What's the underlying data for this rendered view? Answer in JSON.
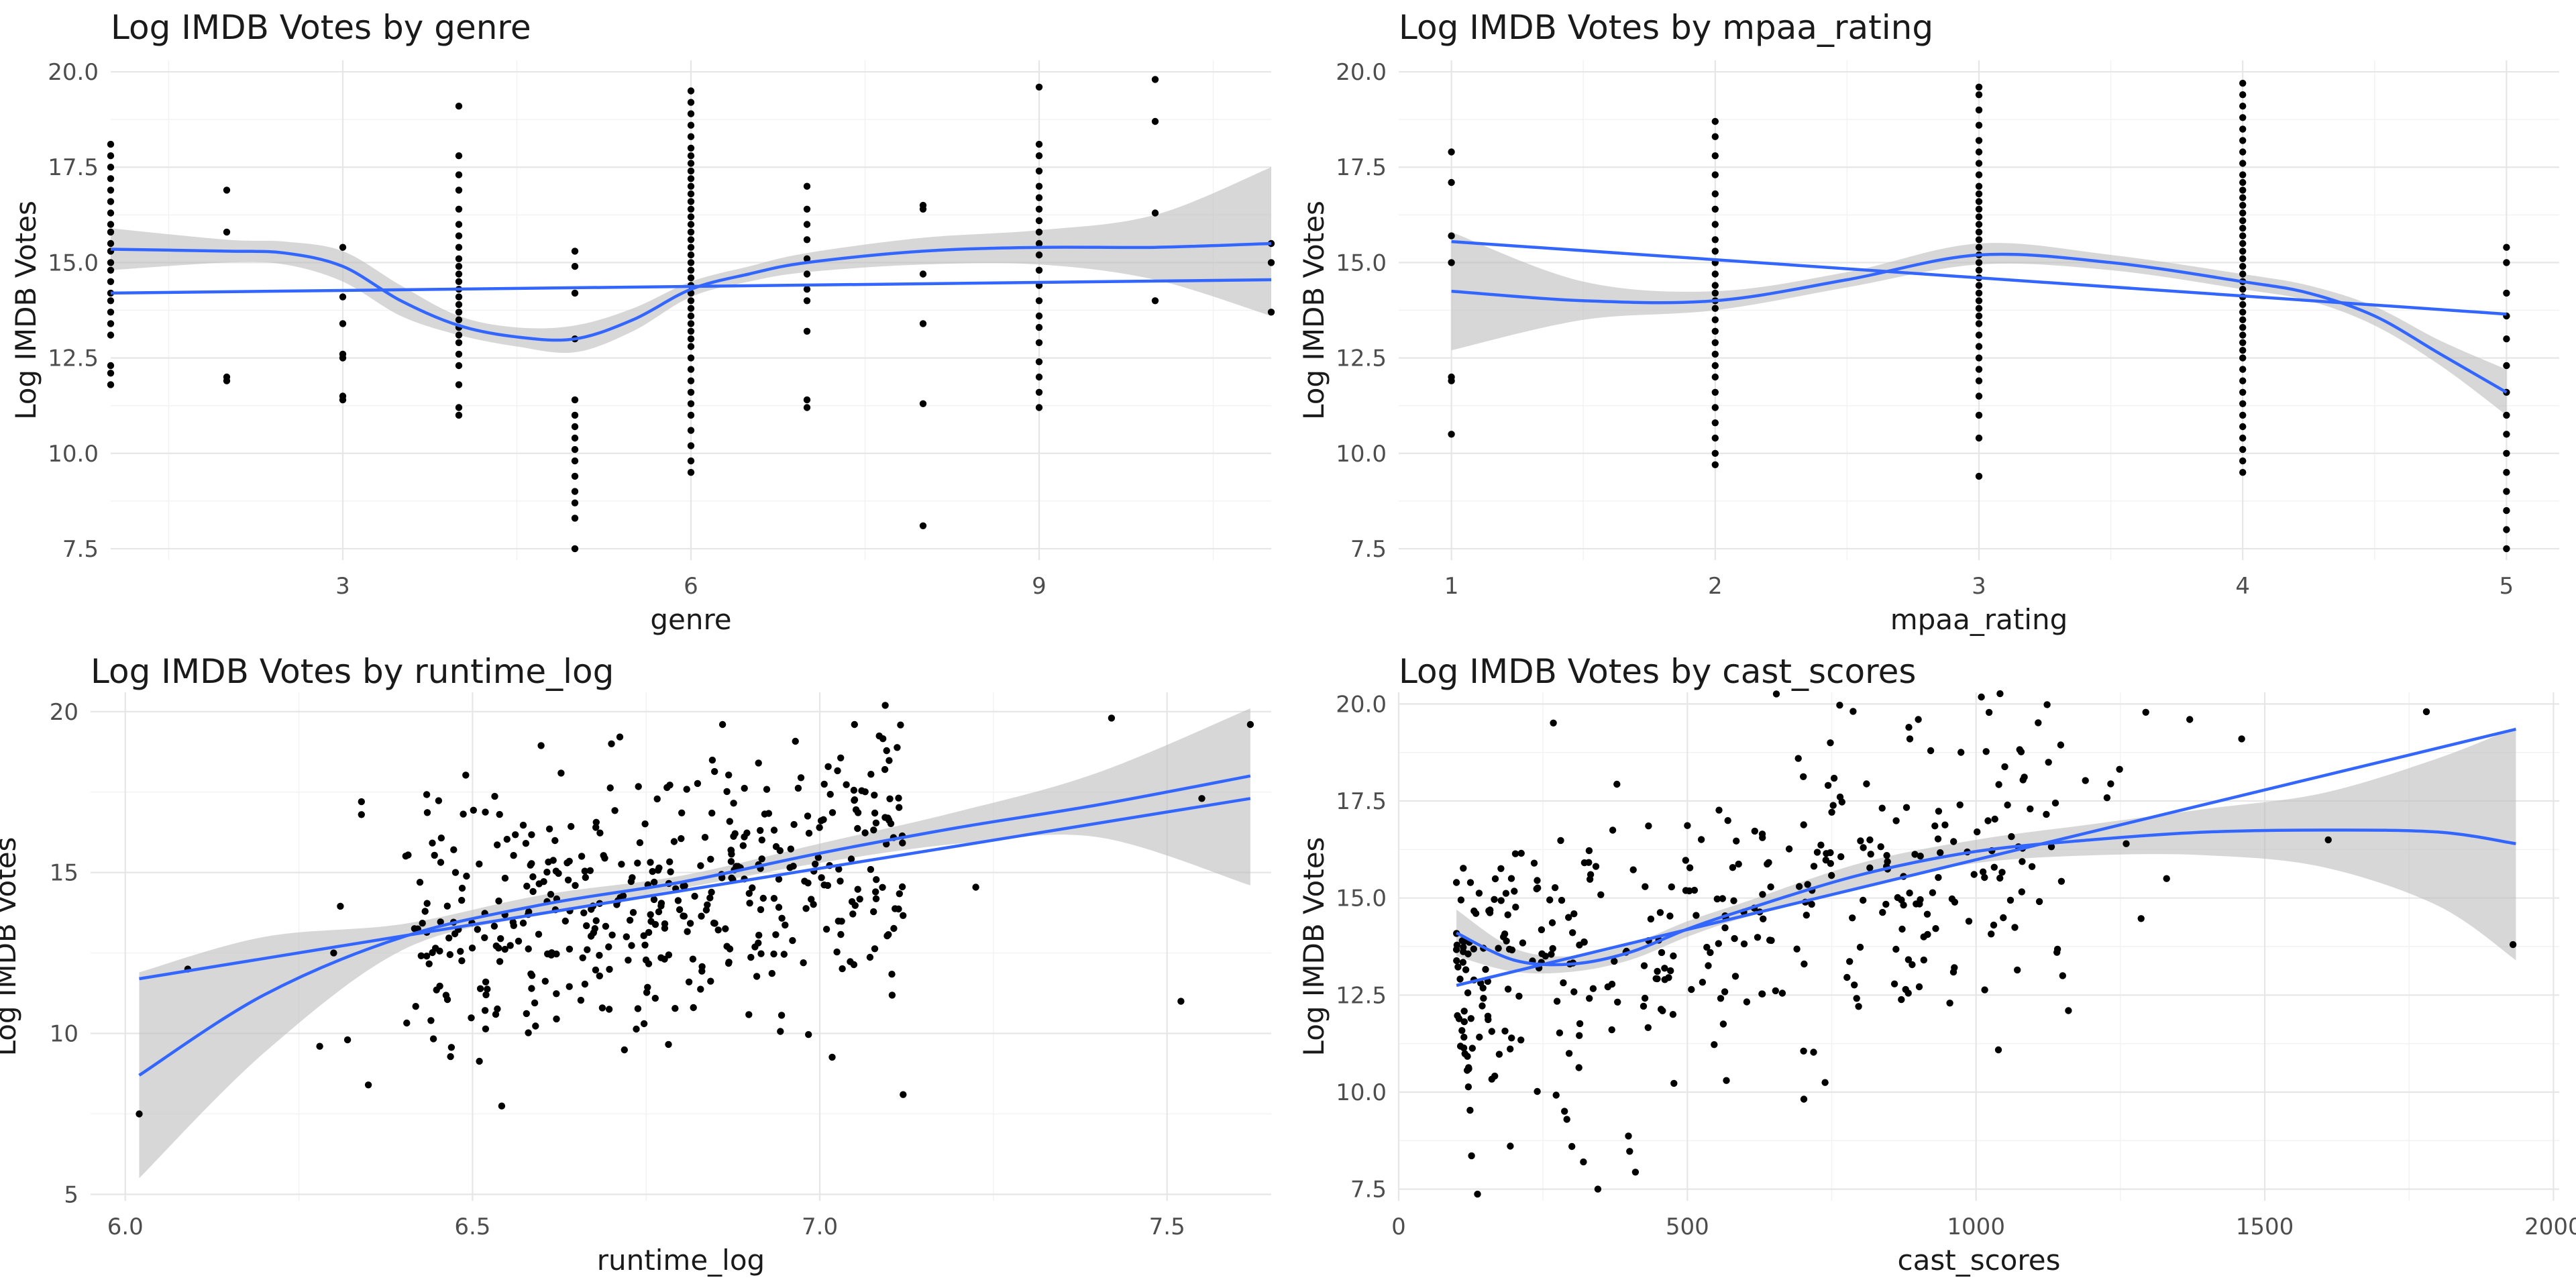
{
  "chart_data": [
    {
      "type": "scatter",
      "title": "Log IMDB Votes by genre",
      "xlabel": "genre",
      "ylabel": "Log IMDB Votes",
      "xlim": [
        1,
        11
      ],
      "ylim": [
        7.2,
        20.3
      ],
      "xticks": [
        3,
        6,
        9
      ],
      "yticks": [
        7.5,
        10.0,
        12.5,
        15.0,
        17.5,
        20.0
      ],
      "xtick_labels": [
        "3",
        "6",
        "9"
      ],
      "ytick_labels": [
        "7.5",
        "10.0",
        "12.5",
        "15.0",
        "17.5",
        "20.0"
      ],
      "grid": true,
      "points": {
        "columns": [
          {
            "x": 1,
            "y": [
              11.8,
              12.1,
              12.3,
              13.1,
              13.4,
              13.7,
              14.0,
              14.2,
              14.5,
              14.8,
              15.0,
              15.3,
              15.5,
              15.8,
              16.0,
              16.3,
              16.6,
              16.9,
              17.2,
              17.5,
              17.8,
              18.1
            ]
          },
          {
            "x": 2,
            "y": [
              11.9,
              12.0,
              15.8,
              16.9
            ]
          },
          {
            "x": 3,
            "y": [
              11.4,
              11.5,
              12.5,
              12.6,
              13.4,
              14.1,
              15.4
            ]
          },
          {
            "x": 4,
            "y": [
              11.0,
              11.2,
              11.8,
              12.3,
              12.6,
              12.9,
              13.1,
              13.3,
              13.5,
              13.7,
              13.9,
              14.1,
              14.3,
              14.5,
              14.7,
              14.9,
              15.1,
              15.4,
              15.7,
              16.0,
              16.4,
              16.9,
              17.3,
              17.8,
              19.1
            ]
          },
          {
            "x": 5,
            "y": [
              7.5,
              8.3,
              8.7,
              9.0,
              9.4,
              9.8,
              10.1,
              10.4,
              10.7,
              11.0,
              11.4,
              13.0,
              14.2,
              14.9,
              15.3
            ]
          },
          {
            "x": 6,
            "y": [
              9.5,
              9.8,
              10.2,
              10.6,
              11.0,
              11.3,
              11.6,
              11.9,
              12.2,
              12.5,
              12.8,
              13.0,
              13.2,
              13.4,
              13.6,
              13.8,
              14.0,
              14.2,
              14.4,
              14.6,
              14.8,
              15.0,
              15.2,
              15.4,
              15.6,
              15.8,
              16.0,
              16.2,
              16.4,
              16.6,
              16.8,
              17.0,
              17.2,
              17.4,
              17.6,
              17.8,
              18.0,
              18.3,
              18.6,
              18.9,
              19.2,
              19.5
            ]
          },
          {
            "x": 7,
            "y": [
              11.2,
              11.4,
              13.2,
              14.0,
              14.3,
              14.7,
              15.1,
              15.6,
              16.0,
              16.4,
              17.0
            ]
          },
          {
            "x": 8,
            "y": [
              8.1,
              11.3,
              13.4,
              14.7,
              16.4,
              16.5
            ]
          },
          {
            "x": 9,
            "y": [
              11.2,
              11.6,
              12.0,
              12.4,
              12.9,
              13.3,
              13.6,
              14.0,
              14.4,
              14.8,
              15.2,
              15.5,
              15.8,
              16.1,
              16.4,
              16.7,
              17.0,
              17.4,
              17.8,
              18.1,
              19.6
            ]
          },
          {
            "x": 10,
            "y": [
              14.0,
              16.3,
              18.7,
              19.8
            ]
          },
          {
            "x": 11,
            "y": [
              13.7,
              15.0,
              15.5
            ]
          }
        ]
      },
      "lm_fit": {
        "x": [
          1,
          11
        ],
        "y": [
          14.2,
          14.55
        ]
      },
      "loess_fit": {
        "x": [
          1,
          2,
          2.5,
          3,
          3.5,
          4,
          4.5,
          5,
          5.5,
          6,
          6.5,
          7,
          8,
          9,
          10,
          11
        ],
        "y": [
          15.35,
          15.3,
          15.25,
          14.9,
          14.0,
          13.35,
          13.05,
          13.0,
          13.5,
          14.3,
          14.7,
          15.0,
          15.3,
          15.4,
          15.4,
          15.5
        ],
        "ci_low": [
          14.8,
          15.0,
          14.95,
          14.5,
          13.6,
          13.1,
          12.8,
          12.65,
          13.2,
          14.1,
          14.5,
          14.75,
          14.95,
          14.95,
          14.55,
          13.6
        ],
        "ci_high": [
          15.9,
          15.6,
          15.55,
          15.3,
          14.4,
          13.6,
          13.3,
          13.35,
          13.8,
          14.5,
          14.9,
          15.25,
          15.65,
          15.85,
          16.25,
          17.5
        ]
      }
    },
    {
      "type": "scatter",
      "title": "Log IMDB Votes by mpaa_rating",
      "xlabel": "mpaa_rating",
      "ylabel": "Log IMDB Votes",
      "xlim": [
        0.8,
        5.2
      ],
      "ylim": [
        7.2,
        20.3
      ],
      "xticks": [
        1,
        2,
        3,
        4,
        5
      ],
      "yticks": [
        7.5,
        10.0,
        12.5,
        15.0,
        17.5,
        20.0
      ],
      "xtick_labels": [
        "1",
        "2",
        "3",
        "4",
        "5"
      ],
      "ytick_labels": [
        "7.5",
        "10.0",
        "12.5",
        "15.0",
        "17.5",
        "20.0"
      ],
      "grid": true,
      "points": {
        "columns": [
          {
            "x": 1,
            "y": [
              10.5,
              11.9,
              12.0,
              15.0,
              15.7,
              17.1,
              17.9
            ]
          },
          {
            "x": 2,
            "y": [
              9.7,
              10.0,
              10.4,
              10.8,
              11.2,
              11.6,
              12.0,
              12.3,
              12.6,
              12.9,
              13.2,
              13.5,
              13.8,
              14.0,
              14.2,
              14.4,
              14.7,
              15.0,
              15.3,
              15.6,
              16.0,
              16.4,
              16.8,
              17.3,
              17.8,
              18.3,
              18.7
            ]
          },
          {
            "x": 3,
            "y": [
              9.4,
              10.4,
              11.0,
              11.5,
              11.9,
              12.2,
              12.5,
              12.8,
              13.1,
              13.4,
              13.6,
              13.8,
              14.0,
              14.2,
              14.4,
              14.6,
              14.8,
              15.0,
              15.2,
              15.4,
              15.6,
              15.8,
              16.0,
              16.2,
              16.4,
              16.6,
              16.8,
              17.0,
              17.3,
              17.6,
              17.9,
              18.2,
              18.6,
              19.0,
              19.4,
              19.6
            ]
          },
          {
            "x": 4,
            "y": [
              9.5,
              9.8,
              10.1,
              10.4,
              10.7,
              11.0,
              11.3,
              11.6,
              11.9,
              12.2,
              12.5,
              12.7,
              12.9,
              13.1,
              13.3,
              13.5,
              13.7,
              13.9,
              14.1,
              14.3,
              14.5,
              14.7,
              14.9,
              15.1,
              15.3,
              15.5,
              15.7,
              15.9,
              16.1,
              16.3,
              16.5,
              16.7,
              16.9,
              17.1,
              17.3,
              17.6,
              17.9,
              18.2,
              18.5,
              18.8,
              19.1,
              19.4,
              19.7
            ]
          },
          {
            "x": 5,
            "y": [
              7.5,
              8.0,
              8.5,
              9.0,
              9.5,
              10.0,
              10.5,
              11.0,
              11.6,
              12.3,
              13.0,
              13.6,
              14.2,
              15.0,
              15.4
            ]
          }
        ]
      },
      "lm_fit": {
        "x": [
          1,
          5
        ],
        "y": [
          15.55,
          13.65
        ]
      },
      "loess_fit": {
        "x": [
          1,
          1.5,
          2,
          2.5,
          3,
          3.5,
          4,
          4.25,
          4.5,
          4.75,
          5
        ],
        "y": [
          14.25,
          14.0,
          14.0,
          14.55,
          15.2,
          15.0,
          14.5,
          14.2,
          13.6,
          12.6,
          11.6
        ],
        "ci_low": [
          12.7,
          13.5,
          13.75,
          14.35,
          14.95,
          14.8,
          14.3,
          14.0,
          13.35,
          12.3,
          11.0
        ],
        "ci_high": [
          15.8,
          14.5,
          14.25,
          14.75,
          15.5,
          15.2,
          14.7,
          14.4,
          13.85,
          12.95,
          12.2
        ]
      }
    },
    {
      "type": "scatter",
      "title": "Log IMDB Votes by runtime_log",
      "xlabel": "runtime_log",
      "ylabel": "Log IMDB Votes",
      "xlim": [
        5.95,
        7.65
      ],
      "ylim": [
        4.8,
        20.6
      ],
      "xticks": [
        6.0,
        6.5,
        7.0,
        7.5
      ],
      "yticks": [
        5,
        10,
        15,
        20
      ],
      "xtick_labels": [
        "6.0",
        "6.5",
        "7.0",
        "7.5"
      ],
      "ytick_labels": [
        "5",
        "10",
        "15",
        "20"
      ],
      "grid": true,
      "scatter_seed": 11,
      "scatter_count": 430,
      "points_extra": [
        [
          6.02,
          7.5
        ],
        [
          6.09,
          12.0
        ],
        [
          6.3,
          12.5
        ],
        [
          6.28,
          9.6
        ],
        [
          6.32,
          9.8
        ],
        [
          6.35,
          8.4
        ],
        [
          6.34,
          17.2
        ],
        [
          6.34,
          16.8
        ],
        [
          7.12,
          8.1
        ],
        [
          7.42,
          19.8
        ],
        [
          7.55,
          17.3
        ],
        [
          7.52,
          11.0
        ],
        [
          7.62,
          19.6
        ],
        [
          6.86,
          19.6
        ],
        [
          7.05,
          19.6
        ],
        [
          6.7,
          19.0
        ]
      ],
      "lm_fit": {
        "x": [
          6.02,
          7.62
        ],
        "y": [
          11.7,
          17.3
        ]
      },
      "loess_fit": {
        "x": [
          6.02,
          6.2,
          6.4,
          6.6,
          6.8,
          7.0,
          7.2,
          7.4,
          7.62
        ],
        "y": [
          8.7,
          11.2,
          13.0,
          14.0,
          14.7,
          15.6,
          16.4,
          17.1,
          18.0
        ],
        "ci_low": [
          5.5,
          9.4,
          12.6,
          13.7,
          14.5,
          15.3,
          15.9,
          16.1,
          14.6
        ],
        "ci_high": [
          11.9,
          13.0,
          13.4,
          14.3,
          14.9,
          15.9,
          16.9,
          18.1,
          20.1
        ]
      }
    },
    {
      "type": "scatter",
      "title": "Log IMDB Votes by cast_scores",
      "xlabel": "cast_scores",
      "ylabel": "Log IMDB Votes",
      "xlim": [
        0,
        2010
      ],
      "ylim": [
        7.2,
        20.3
      ],
      "xticks": [
        0,
        500,
        1000,
        1500,
        2000
      ],
      "yticks": [
        7.5,
        10.0,
        12.5,
        15.0,
        17.5,
        20.0
      ],
      "xtick_labels": [
        "0",
        "500",
        "1000",
        "1500",
        "2000"
      ],
      "ytick_labels": [
        "7.5",
        "10.0",
        "12.5",
        "15.0",
        "17.5",
        "20.0"
      ],
      "grid": true,
      "scatter_seed": 23,
      "scatter_count": 380,
      "points_extra": [
        [
          345,
          7.5
        ],
        [
          320,
          8.2
        ],
        [
          300,
          8.6
        ],
        [
          1780,
          19.8
        ],
        [
          1460,
          19.1
        ],
        [
          1370,
          19.6
        ],
        [
          1930,
          13.8
        ],
        [
          1610,
          16.5
        ],
        [
          1260,
          16.4
        ],
        [
          1330,
          15.5
        ],
        [
          1150,
          13.0
        ],
        [
          1160,
          12.1
        ],
        [
          1140,
          13.6
        ],
        [
          900,
          19.6
        ],
        [
          100,
          15.4
        ]
      ],
      "lm_fit": {
        "x": [
          100,
          1935
        ],
        "y": [
          12.75,
          19.35
        ]
      },
      "loess_fit": {
        "x": [
          100,
          200,
          300,
          400,
          500,
          600,
          800,
          1000,
          1200,
          1400,
          1600,
          1800,
          1935
        ],
        "y": [
          14.1,
          13.4,
          13.3,
          13.6,
          14.2,
          14.7,
          15.6,
          16.2,
          16.5,
          16.7,
          16.75,
          16.7,
          16.4
        ],
        "ci_low": [
          13.5,
          13.1,
          13.1,
          13.4,
          14.0,
          14.5,
          15.3,
          15.9,
          16.1,
          16.1,
          15.8,
          14.8,
          13.4
        ],
        "ci_high": [
          14.7,
          13.7,
          13.5,
          13.8,
          14.4,
          14.9,
          15.9,
          16.5,
          16.9,
          17.3,
          17.7,
          18.6,
          19.4
        ]
      }
    }
  ]
}
